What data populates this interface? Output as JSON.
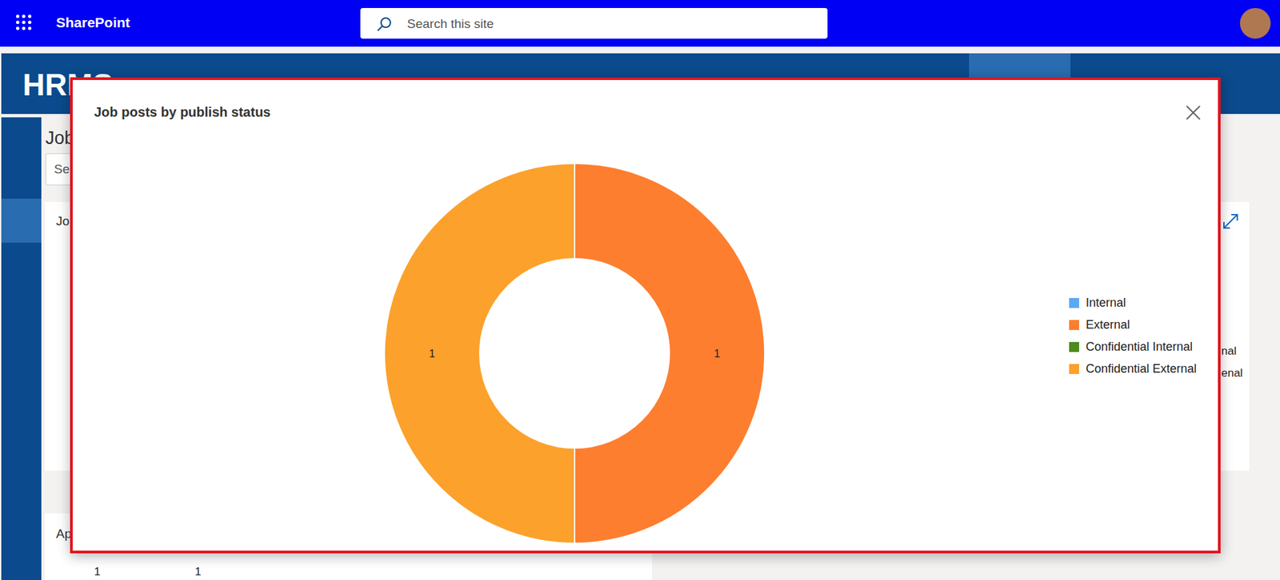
{
  "app_bar": {
    "title": "SharePoint",
    "search_placeholder": "Search this site"
  },
  "site": {
    "logo": "HRMS"
  },
  "background_texts": {
    "page_title": "Job",
    "search": "Se",
    "card_title": "Jo",
    "legend_fragments": [
      "nal",
      "enal"
    ],
    "lower_card_title": "Ap",
    "lower_values": [
      1,
      1
    ]
  },
  "chart_data": {
    "type": "pie",
    "title": "Job posts by publish status",
    "categories": [
      "Internal",
      "External",
      "Confidential Internal",
      "Confidential External"
    ],
    "values": [
      0,
      1,
      0,
      1
    ],
    "colors": [
      "#5aa9f5",
      "#fd7e2e",
      "#4e8a1f",
      "#fca12b"
    ],
    "data_labels": true,
    "legend": "right"
  }
}
